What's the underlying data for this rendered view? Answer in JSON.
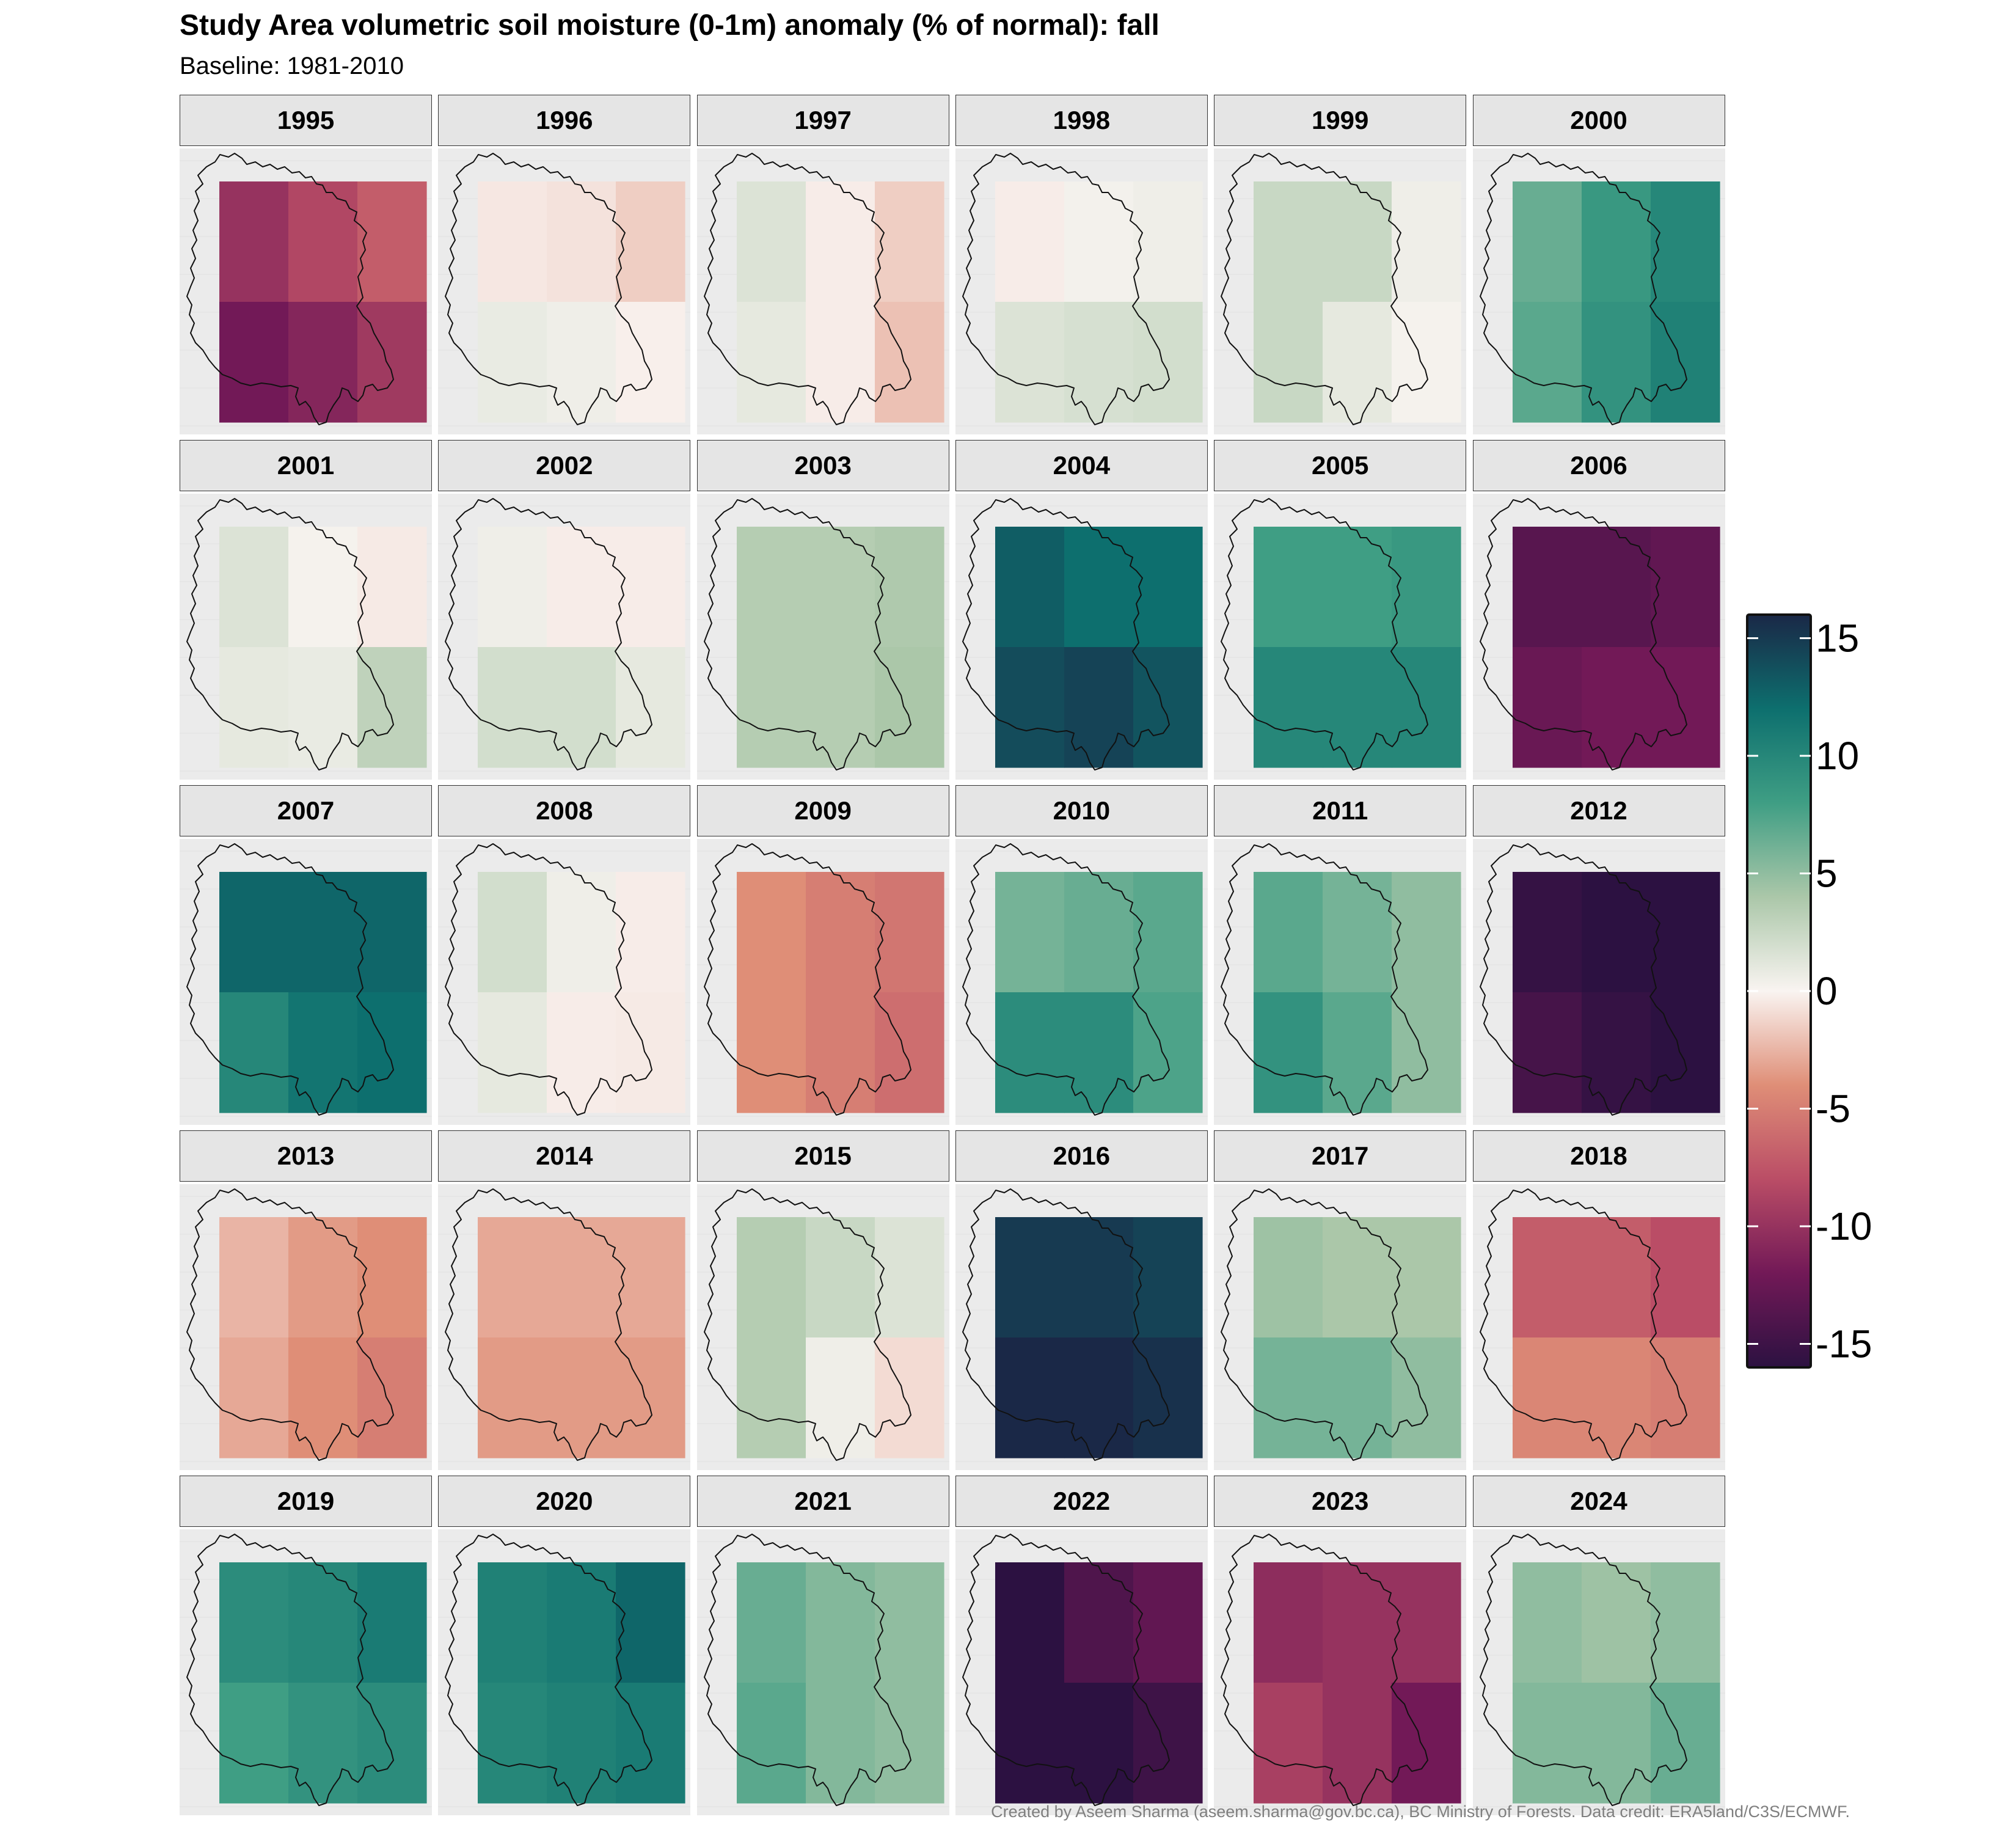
{
  "title": "Study Area volumetric soil moisture (0-1m) anomaly (% of normal): fall",
  "subtitle": "Baseline: 1981-2010",
  "caption": "Created by Aseem Sharma (aseem.sharma@gov.bc.ca), BC Ministry of Forests. Data credit: ERA5land/C3S/ECMWF.",
  "chart_data": {
    "type": "heatmap",
    "value_label": "anomaly (% of normal)",
    "color_scale": {
      "limits": [
        -16,
        16
      ],
      "ticks": [
        15,
        10,
        5,
        0,
        -5,
        -10,
        -15
      ],
      "tick_labels": [
        "15",
        "10",
        "5",
        "0",
        "-5",
        "-10",
        "-15"
      ],
      "stops": [
        [
          -16,
          "#2c1141"
        ],
        [
          -12,
          "#721957"
        ],
        [
          -8,
          "#ba4d66"
        ],
        [
          -4,
          "#df8e77"
        ],
        [
          0,
          "#f9f4f1"
        ],
        [
          4,
          "#abc7a9"
        ],
        [
          8,
          "#3f9e84"
        ],
        [
          12,
          "#0d6f6e"
        ],
        [
          16,
          "#1a2847"
        ]
      ]
    },
    "grid": {
      "rows": 2,
      "cols": 3
    },
    "facets": [
      {
        "year": "1995",
        "grid": [
          [
            -10,
            -8.5,
            -7
          ],
          [
            -12,
            -11,
            -9.5
          ]
        ]
      },
      {
        "year": "1996",
        "grid": [
          [
            -0.5,
            -0.7,
            -1.5
          ],
          [
            0.8,
            0.5,
            -0.2
          ]
        ]
      },
      {
        "year": "1997",
        "grid": [
          [
            1.5,
            -0.3,
            -1.5
          ],
          [
            1.0,
            -0.3,
            -2.0
          ]
        ]
      },
      {
        "year": "1998",
        "grid": [
          [
            -0.3,
            0.3,
            0.5
          ],
          [
            1.5,
            1.8,
            2.0
          ]
        ]
      },
      {
        "year": "1999",
        "grid": [
          [
            2.5,
            2.5,
            0.5
          ],
          [
            2.5,
            1.0,
            0.2
          ]
        ]
      },
      {
        "year": "2000",
        "grid": [
          [
            6.5,
            8.5,
            10
          ],
          [
            7,
            9,
            10.5
          ]
        ]
      },
      {
        "year": "2001",
        "grid": [
          [
            1.5,
            0.2,
            -0.4
          ],
          [
            1.0,
            0.8,
            3.0
          ]
        ]
      },
      {
        "year": "2002",
        "grid": [
          [
            0.5,
            -0.3,
            -0.3
          ],
          [
            2.0,
            2.0,
            1.0
          ]
        ]
      },
      {
        "year": "2003",
        "grid": [
          [
            3.5,
            3.5,
            3.8
          ],
          [
            3.5,
            3.5,
            4.0
          ]
        ]
      },
      {
        "year": "2004",
        "grid": [
          [
            13,
            12,
            12
          ],
          [
            14,
            14.5,
            13.5
          ]
        ]
      },
      {
        "year": "2005",
        "grid": [
          [
            8,
            8,
            8.5
          ],
          [
            10,
            10,
            10
          ]
        ]
      },
      {
        "year": "2006",
        "grid": [
          [
            -13.5,
            -13.5,
            -13
          ],
          [
            -12.5,
            -12,
            -12
          ]
        ]
      },
      {
        "year": "2007",
        "grid": [
          [
            12.5,
            12.5,
            12.5
          ],
          [
            10,
            11.5,
            12
          ]
        ]
      },
      {
        "year": "2008",
        "grid": [
          [
            2.0,
            0.5,
            -0.3
          ],
          [
            1.0,
            -0.3,
            -0.4
          ]
        ]
      },
      {
        "year": "2009",
        "grid": [
          [
            -4,
            -5,
            -5.5
          ],
          [
            -4,
            -5,
            -6
          ]
        ]
      },
      {
        "year": "2010",
        "grid": [
          [
            6,
            6.5,
            7
          ],
          [
            9.5,
            9.5,
            7.5
          ]
        ]
      },
      {
        "year": "2011",
        "grid": [
          [
            7,
            6,
            5
          ],
          [
            9,
            7,
            5
          ]
        ]
      },
      {
        "year": "2012",
        "grid": [
          [
            -15.5,
            -16,
            -16.5
          ],
          [
            -14.5,
            -15.5,
            -16
          ]
        ]
      },
      {
        "year": "2013",
        "grid": [
          [
            -2.5,
            -3.5,
            -4
          ],
          [
            -3,
            -4,
            -5
          ]
        ]
      },
      {
        "year": "2014",
        "grid": [
          [
            -3,
            -3,
            -3
          ],
          [
            -3.5,
            -3.5,
            -3.5
          ]
        ]
      },
      {
        "year": "2015",
        "grid": [
          [
            3.5,
            2.5,
            1.5
          ],
          [
            3.5,
            0.5,
            -1.0
          ]
        ]
      },
      {
        "year": "2016",
        "grid": [
          [
            15,
            15,
            14.5
          ],
          [
            16,
            16,
            15.5
          ]
        ]
      },
      {
        "year": "2017",
        "grid": [
          [
            4.5,
            4,
            4
          ],
          [
            6,
            6,
            5
          ]
        ]
      },
      {
        "year": "2018",
        "grid": [
          [
            -7,
            -7,
            -8
          ],
          [
            -4.5,
            -4.5,
            -5
          ]
        ]
      },
      {
        "year": "2019",
        "grid": [
          [
            9.5,
            10,
            11
          ],
          [
            8,
            9,
            9.5
          ]
        ]
      },
      {
        "year": "2020",
        "grid": [
          [
            10.5,
            11,
            12.5
          ],
          [
            10,
            10.5,
            11
          ]
        ]
      },
      {
        "year": "2021",
        "grid": [
          [
            6.5,
            5.5,
            5
          ],
          [
            7,
            5.5,
            5
          ]
        ]
      },
      {
        "year": "2022",
        "grid": [
          [
            -16,
            -14,
            -13
          ],
          [
            -17,
            -17,
            -15
          ]
        ]
      },
      {
        "year": "2023",
        "grid": [
          [
            -10.5,
            -10,
            -10
          ],
          [
            -9,
            -10,
            -12
          ]
        ]
      },
      {
        "year": "2024",
        "grid": [
          [
            5,
            4.5,
            5
          ],
          [
            5.5,
            5.5,
            6.5
          ]
        ]
      }
    ]
  }
}
